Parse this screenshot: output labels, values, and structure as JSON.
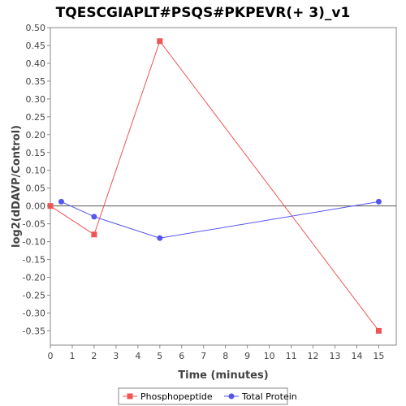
{
  "chart_data": {
    "type": "line",
    "title": "TQESCGIAPLT#PSQS#PKPEVR(+ 3)_v1",
    "xlabel": "Time (minutes)",
    "ylabel": "log2(dDAVP/Control)",
    "xlim": [
      0,
      15.8
    ],
    "ylim": [
      -0.39,
      0.5
    ],
    "x_ticks": [
      0,
      1,
      2,
      3,
      4,
      5,
      6,
      7,
      8,
      9,
      10,
      11,
      12,
      13,
      14,
      15
    ],
    "y_ticks": [
      0.5,
      0.45,
      0.4,
      0.35,
      0.3,
      0.25,
      0.2,
      0.15,
      0.1,
      0.05,
      0.0,
      -0.05,
      -0.1,
      -0.15,
      -0.2,
      -0.25,
      -0.3,
      -0.35
    ],
    "y_tick_labels": [
      "0.50",
      "0.45",
      "0.40",
      "0.35",
      "0.30",
      "0.25",
      "0.20",
      "0.15",
      "0.10",
      "0.05",
      "0.00",
      "-0.05",
      "-0.10",
      "-0.15",
      "-0.20",
      "-0.25",
      "-0.30",
      "-0.35"
    ],
    "legend_position": "bottom",
    "series": [
      {
        "name": "Phosphopeptide",
        "color": "#ee5555",
        "marker": "square",
        "points": [
          [
            0,
            0.0
          ],
          [
            2,
            -0.08
          ],
          [
            5,
            0.462
          ],
          [
            15,
            -0.35
          ]
        ]
      },
      {
        "name": "Total Protein",
        "color": "#5555ee",
        "marker": "circle",
        "points": [
          [
            0.5,
            0.012
          ],
          [
            2,
            -0.03
          ],
          [
            5,
            -0.09
          ],
          [
            15,
            0.012
          ]
        ]
      }
    ]
  }
}
